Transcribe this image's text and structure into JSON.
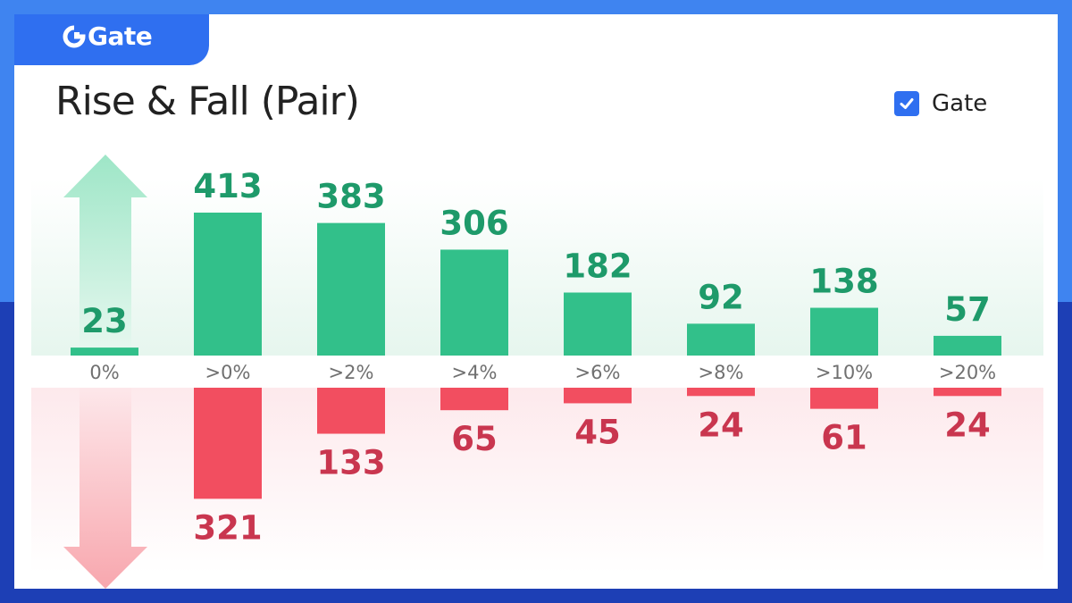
{
  "brand": {
    "logo_text": "Gate",
    "accent": "#2f6ff0",
    "frame_top": "#3f84f0",
    "frame_bottom": "#1d3fb5"
  },
  "legend": {
    "checkbox_checked": true,
    "label": "Gate"
  },
  "colors": {
    "rise": "#32c08a",
    "rise_text": "#1e9a6a",
    "fall": "#f24e60",
    "fall_text": "#c9364f"
  },
  "chart_data": {
    "type": "bar",
    "title": "Rise & Fall (Pair)",
    "categories": [
      "0%",
      ">0%",
      ">2%",
      ">4%",
      ">6%",
      ">8%",
      ">10%",
      ">20%"
    ],
    "series": [
      {
        "values": [
          23,
          413,
          383,
          306,
          182,
          92,
          138,
          57
        ]
      },
      {
        "values": [
          0,
          321,
          133,
          65,
          45,
          24,
          61,
          24
        ]
      }
    ],
    "ylim": [
      0,
      413
    ],
    "grid": false
  }
}
